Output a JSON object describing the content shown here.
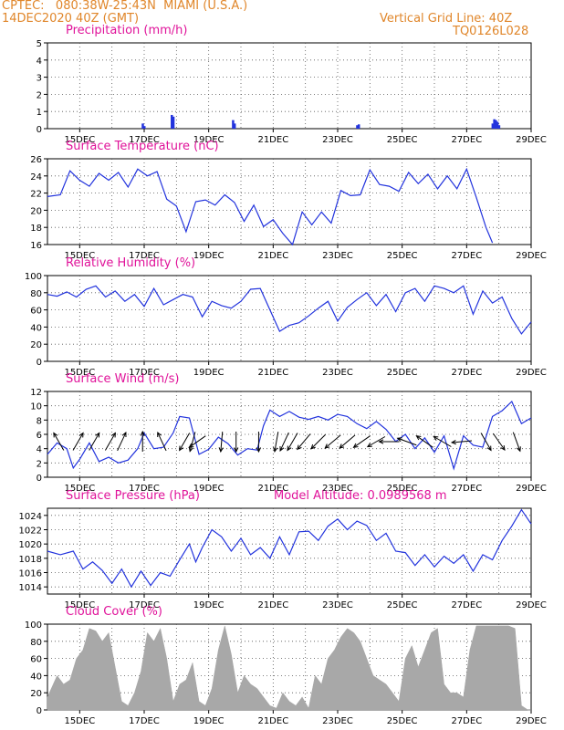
{
  "header": {
    "line1": "CPTEC:   080:38W-25:43N  MIAMI (U.S.A.)",
    "line2": "14DEC2020 40Z (GMT)",
    "grid_note": "Vertical Grid Line: 40Z",
    "code": "TQ0126L028"
  },
  "colors": {
    "header": "#e0862a",
    "title": "#e0139a",
    "line": "#2233dd",
    "precip": "#2233dd",
    "cloud": "#a8a8a8",
    "arrow": "#000000"
  },
  "x_axis": {
    "domain": [
      14.0,
      29.0
    ],
    "ticks": [
      {
        "x": 15,
        "label": "15DEC"
      },
      {
        "x": 17,
        "label": "17DEC"
      },
      {
        "x": 19,
        "label": "19DEC"
      },
      {
        "x": 21,
        "label": "21DEC"
      },
      {
        "x": 23,
        "label": "23DEC"
      },
      {
        "x": 25,
        "label": "25DEC"
      },
      {
        "x": 27,
        "label": "27DEC"
      },
      {
        "x": 29,
        "label": "29DEC"
      }
    ]
  },
  "chart_data": [
    {
      "id": "precip",
      "type": "bar",
      "title": "Precipitation (mm/h)",
      "ylim": [
        0,
        5
      ],
      "yticks": [
        0,
        1,
        2,
        3,
        4,
        5
      ],
      "grid": true,
      "x": [
        16.95,
        17.0,
        17.85,
        17.9,
        19.75,
        19.8,
        23.6,
        23.65,
        27.8,
        27.85,
        27.9,
        27.95,
        28.0
      ],
      "values": [
        0.3,
        0.15,
        0.8,
        0.7,
        0.5,
        0.3,
        0.2,
        0.25,
        0.3,
        0.55,
        0.5,
        0.4,
        0.2
      ]
    },
    {
      "id": "temp",
      "type": "line",
      "title": "Surface Temperature (nC)",
      "ylim": [
        16,
        26
      ],
      "yticks": [
        16,
        18,
        20,
        22,
        24,
        26
      ],
      "grid": true,
      "x": [
        14.0,
        14.4,
        14.7,
        15.0,
        15.3,
        15.6,
        15.9,
        16.2,
        16.5,
        16.8,
        17.1,
        17.4,
        17.7,
        18.0,
        18.3,
        18.6,
        18.9,
        19.2,
        19.5,
        19.8,
        20.1,
        20.4,
        20.7,
        21.0,
        21.3,
        21.6,
        21.9,
        22.2,
        22.5,
        22.8,
        23.1,
        23.4,
        23.7,
        24.0,
        24.3,
        24.6,
        24.9,
        25.2,
        25.5,
        25.8,
        26.1,
        26.4,
        26.7,
        27.0,
        27.3,
        27.6,
        27.8
      ],
      "values": [
        21.6,
        21.8,
        24.6,
        23.5,
        22.8,
        24.3,
        23.5,
        24.4,
        22.7,
        24.8,
        24.0,
        24.5,
        21.3,
        20.5,
        17.5,
        21.0,
        21.2,
        20.6,
        21.8,
        20.9,
        18.7,
        20.6,
        18.1,
        18.9,
        17.3,
        16.0,
        19.8,
        18.3,
        19.8,
        18.5,
        22.3,
        21.7,
        21.8,
        24.7,
        23.0,
        22.8,
        22.2,
        24.4,
        23.1,
        24.2,
        22.5,
        24.0,
        22.5,
        24.8,
        21.5,
        18.0,
        16.2
      ]
    },
    {
      "id": "rh",
      "type": "line",
      "title": "Relative Humidity (%)",
      "ylim": [
        0,
        100
      ],
      "yticks": [
        0,
        20,
        40,
        60,
        80,
        100
      ],
      "grid": true,
      "x": [
        14.0,
        14.3,
        14.6,
        14.9,
        15.2,
        15.5,
        15.8,
        16.1,
        16.4,
        16.7,
        17.0,
        17.3,
        17.6,
        17.9,
        18.2,
        18.5,
        18.8,
        19.1,
        19.4,
        19.7,
        20.0,
        20.3,
        20.6,
        20.9,
        21.2,
        21.5,
        21.8,
        22.1,
        22.4,
        22.7,
        23.0,
        23.3,
        23.6,
        23.9,
        24.2,
        24.5,
        24.8,
        25.1,
        25.4,
        25.7,
        26.0,
        26.3,
        26.6,
        26.9,
        27.2,
        27.5,
        27.8,
        28.1,
        28.4,
        28.7,
        29.0
      ],
      "values": [
        78,
        76,
        81,
        75,
        84,
        88,
        75,
        82,
        70,
        78,
        64,
        85,
        66,
        72,
        78,
        75,
        52,
        70,
        65,
        62,
        70,
        84,
        85,
        60,
        35,
        42,
        45,
        53,
        62,
        70,
        47,
        63,
        72,
        80,
        65,
        78,
        58,
        80,
        85,
        70,
        88,
        85,
        80,
        88,
        55,
        82,
        68,
        75,
        50,
        32,
        46
      ]
    },
    {
      "id": "wind",
      "type": "line",
      "title": "Surface Wind (m/s)",
      "ylim": [
        0,
        12
      ],
      "yticks": [
        0,
        2,
        4,
        6,
        8,
        10,
        12
      ],
      "grid": true,
      "x": [
        14.0,
        14.3,
        14.6,
        14.8,
        15.0,
        15.3,
        15.6,
        15.9,
        16.2,
        16.5,
        16.8,
        17.0,
        17.3,
        17.6,
        17.9,
        18.1,
        18.4,
        18.7,
        19.0,
        19.3,
        19.6,
        19.9,
        20.2,
        20.5,
        20.7,
        20.9,
        21.2,
        21.5,
        21.8,
        22.1,
        22.4,
        22.7,
        23.0,
        23.3,
        23.6,
        23.9,
        24.2,
        24.5,
        24.8,
        25.1,
        25.4,
        25.7,
        26.0,
        26.3,
        26.6,
        26.9,
        27.2,
        27.5,
        27.8,
        28.1,
        28.4,
        28.7,
        29.0
      ],
      "values": [
        3.2,
        4.8,
        4.0,
        1.3,
        2.5,
        4.8,
        2.2,
        2.8,
        2.0,
        2.4,
        4.0,
        6.2,
        4.0,
        4.2,
        6.2,
        8.5,
        8.3,
        3.2,
        3.9,
        5.6,
        4.7,
        3.1,
        4.0,
        3.8,
        7.2,
        9.4,
        8.5,
        9.2,
        8.4,
        8.1,
        8.5,
        8.0,
        8.8,
        8.5,
        7.5,
        6.8,
        7.8,
        6.7,
        5.0,
        6.0,
        4.0,
        5.5,
        3.5,
        5.8,
        1.2,
        5.8,
        4.5,
        4.2,
        8.5,
        9.3,
        10.6,
        7.5,
        8.3
      ]
    },
    {
      "id": "pressure",
      "type": "line",
      "title": "Surface Pressure (hPa)",
      "annotation": "Model Altitude: 0.0989568 m",
      "ylim": [
        1013,
        1025
      ],
      "yticks": [
        1014,
        1016,
        1018,
        1020,
        1022,
        1024
      ],
      "grid": true,
      "x": [
        14.0,
        14.4,
        14.8,
        15.1,
        15.4,
        15.7,
        16.0,
        16.3,
        16.6,
        16.9,
        17.2,
        17.5,
        17.8,
        18.1,
        18.4,
        18.6,
        18.8,
        19.1,
        19.4,
        19.7,
        20.0,
        20.3,
        20.6,
        20.9,
        21.2,
        21.5,
        21.8,
        22.1,
        22.4,
        22.7,
        23.0,
        23.3,
        23.6,
        23.9,
        24.2,
        24.5,
        24.8,
        25.1,
        25.4,
        25.7,
        26.0,
        26.3,
        26.6,
        26.9,
        27.2,
        27.5,
        27.8,
        28.1,
        28.4,
        28.7,
        29.0
      ],
      "values": [
        1019.0,
        1018.5,
        1019.0,
        1016.5,
        1017.5,
        1016.3,
        1014.5,
        1016.5,
        1014.0,
        1016.2,
        1014.2,
        1016.0,
        1015.5,
        1017.8,
        1020.0,
        1017.5,
        1019.5,
        1022.0,
        1021.0,
        1019.0,
        1020.8,
        1018.5,
        1019.5,
        1018.0,
        1021.0,
        1018.5,
        1021.7,
        1021.8,
        1020.5,
        1022.5,
        1023.5,
        1022.0,
        1023.2,
        1022.6,
        1020.5,
        1021.5,
        1019.0,
        1018.8,
        1017.0,
        1018.5,
        1016.8,
        1018.3,
        1017.3,
        1018.5,
        1016.2,
        1018.5,
        1017.8,
        1020.5,
        1022.5,
        1024.8,
        1022.8
      ]
    },
    {
      "id": "cloud",
      "type": "area",
      "title": "Cloud Cover (%)",
      "ylim": [
        0,
        100
      ],
      "yticks": [
        0,
        20,
        40,
        60,
        80,
        100
      ],
      "grid": true,
      "x": [
        14.0,
        14.3,
        14.5,
        14.7,
        14.9,
        15.1,
        15.3,
        15.5,
        15.7,
        15.9,
        16.1,
        16.3,
        16.5,
        16.7,
        16.9,
        17.1,
        17.3,
        17.5,
        17.7,
        17.9,
        18.1,
        18.3,
        18.5,
        18.7,
        18.9,
        19.1,
        19.3,
        19.5,
        19.7,
        19.9,
        20.1,
        20.3,
        20.5,
        20.7,
        20.9,
        21.1,
        21.3,
        21.5,
        21.7,
        21.9,
        22.1,
        22.3,
        22.5,
        22.7,
        22.9,
        23.1,
        23.3,
        23.5,
        23.7,
        23.9,
        24.1,
        24.3,
        24.5,
        24.7,
        24.9,
        25.1,
        25.3,
        25.5,
        25.7,
        25.9,
        26.1,
        26.3,
        26.5,
        26.7,
        26.9,
        27.1,
        27.3,
        27.5,
        27.7,
        27.9,
        28.1,
        28.3,
        28.5,
        28.7,
        28.9,
        29.0
      ],
      "values": [
        15,
        40,
        30,
        35,
        60,
        70,
        95,
        92,
        80,
        90,
        50,
        10,
        5,
        20,
        45,
        90,
        80,
        95,
        60,
        10,
        30,
        35,
        55,
        10,
        5,
        25,
        70,
        98,
        65,
        20,
        40,
        30,
        25,
        15,
        5,
        2,
        20,
        10,
        5,
        15,
        2,
        40,
        30,
        60,
        70,
        85,
        95,
        90,
        80,
        60,
        40,
        35,
        30,
        20,
        10,
        60,
        75,
        50,
        70,
        90,
        95,
        30,
        20,
        20,
        15,
        70,
        98,
        98,
        98,
        98,
        98,
        98,
        95,
        5,
        0,
        0
      ]
    }
  ],
  "wind_vectors": [
    {
      "day": 14.35,
      "deg": 120
    },
    {
      "day": 14.95,
      "deg": 60
    },
    {
      "day": 15.45,
      "deg": 60
    },
    {
      "day": 15.95,
      "deg": 60
    },
    {
      "day": 16.3,
      "deg": 65
    },
    {
      "day": 16.95,
      "deg": 90
    },
    {
      "day": 17.55,
      "deg": 115
    },
    {
      "day": 18.25,
      "deg": 240
    },
    {
      "day": 18.5,
      "deg": 255
    },
    {
      "day": 18.65,
      "deg": 215
    },
    {
      "day": 19.4,
      "deg": 265
    },
    {
      "day": 19.85,
      "deg": 270
    },
    {
      "day": 20.55,
      "deg": 270
    },
    {
      "day": 21.1,
      "deg": 260
    },
    {
      "day": 21.35,
      "deg": 245
    },
    {
      "day": 21.6,
      "deg": 240
    },
    {
      "day": 21.95,
      "deg": 230
    },
    {
      "day": 22.4,
      "deg": 225
    },
    {
      "day": 22.85,
      "deg": 220
    },
    {
      "day": 23.3,
      "deg": 220
    },
    {
      "day": 23.75,
      "deg": 215
    },
    {
      "day": 24.2,
      "deg": 210
    },
    {
      "day": 24.6,
      "deg": 180
    },
    {
      "day": 25.15,
      "deg": 160
    },
    {
      "day": 25.7,
      "deg": 145
    },
    {
      "day": 26.25,
      "deg": 150
    },
    {
      "day": 26.85,
      "deg": 185
    },
    {
      "day": 27.6,
      "deg": 300
    },
    {
      "day": 28.0,
      "deg": 305
    },
    {
      "day": 28.55,
      "deg": 290
    }
  ]
}
